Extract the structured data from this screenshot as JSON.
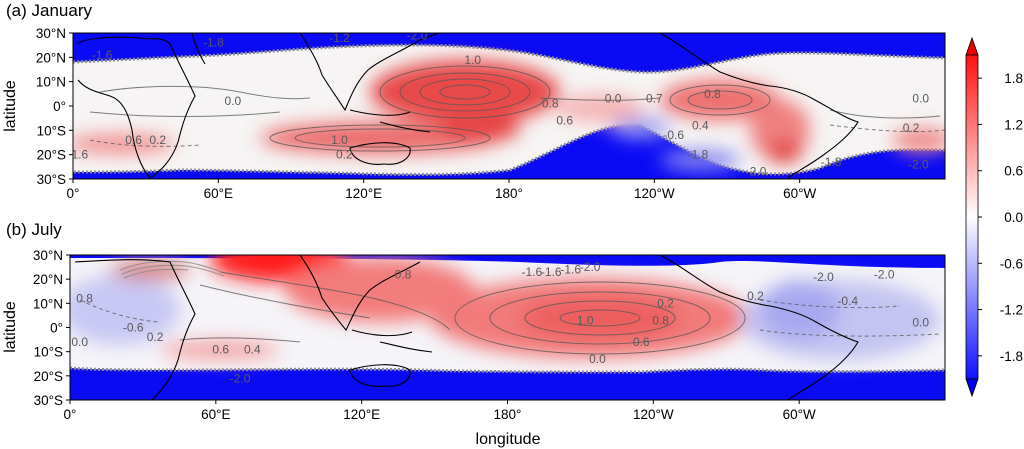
{
  "chart_data": [
    {
      "type": "heatmap",
      "title": "(a) January",
      "ylabel": "latitude",
      "xlabel": "",
      "x_ticks": [
        "0°",
        "60°E",
        "120°E",
        "180°",
        "120°W",
        "60°W"
      ],
      "x_tick_values": [
        0,
        60,
        120,
        180,
        240,
        300
      ],
      "xlim": [
        0,
        360
      ],
      "y_ticks": [
        "30°N",
        "20°N",
        "10°N",
        "0°",
        "10°S",
        "20°S",
        "30°S"
      ],
      "y_tick_values": [
        30,
        20,
        10,
        0,
        -10,
        -20,
        -30
      ],
      "ylim": [
        -30,
        30
      ],
      "contour_labels": [
        {
          "text": "-1.6",
          "lon": 12,
          "lat": 21
        },
        {
          "text": "-1.8",
          "lon": 58,
          "lat": 26
        },
        {
          "text": "-1.2",
          "lon": 110,
          "lat": 28
        },
        {
          "text": "-2.0",
          "lon": 142,
          "lat": 29
        },
        {
          "text": "1.0",
          "lon": 165,
          "lat": 19
        },
        {
          "text": "0.0",
          "lon": 66,
          "lat": 2
        },
        {
          "text": "0.8",
          "lon": 197,
          "lat": 1
        },
        {
          "text": "0.0",
          "lon": 223,
          "lat": 3
        },
        {
          "text": "0.7",
          "lon": 240,
          "lat": 3
        },
        {
          "text": "0.8",
          "lon": 264,
          "lat": 5
        },
        {
          "text": "0.6",
          "lon": 203,
          "lat": -6
        },
        {
          "text": "0.4",
          "lon": 259,
          "lat": -8
        },
        {
          "text": "-0.6",
          "lon": 248,
          "lat": -12
        },
        {
          "text": "1.0",
          "lon": 110,
          "lat": -14
        },
        {
          "text": "0.6",
          "lon": 25,
          "lat": -14
        },
        {
          "text": "0.2",
          "lon": 35,
          "lat": -14
        },
        {
          "text": "0.2",
          "lon": 112,
          "lat": -20
        },
        {
          "text": "-1.6",
          "lon": 2,
          "lat": -20
        },
        {
          "text": "-1.8",
          "lon": 258,
          "lat": -20
        },
        {
          "text": "0.0",
          "lon": 350,
          "lat": 3
        },
        {
          "text": "0.2",
          "lon": 346,
          "lat": -9
        },
        {
          "text": "-1.8",
          "lon": 313,
          "lat": -23
        },
        {
          "text": "-2.0",
          "lon": 349,
          "lat": -24
        },
        {
          "text": "-2.0",
          "lon": 282,
          "lat": -27
        }
      ]
    },
    {
      "type": "heatmap",
      "title": "(b) July",
      "ylabel": "latitude",
      "xlabel": "longitude",
      "x_ticks": [
        "0°",
        "60°E",
        "120°E",
        "180°",
        "120°W",
        "60°W"
      ],
      "x_tick_values": [
        0,
        60,
        120,
        180,
        240,
        300
      ],
      "xlim": [
        0,
        360
      ],
      "y_ticks": [
        "30°N",
        "20°N",
        "10°N",
        "0°",
        "10°S",
        "20°S",
        "30°S"
      ],
      "y_tick_values": [
        30,
        20,
        10,
        0,
        -10,
        -20,
        -30
      ],
      "ylim": [
        -30,
        30
      ],
      "contour_labels": [
        {
          "text": "0.8",
          "lon": 137,
          "lat": 22
        },
        {
          "text": "-1.6",
          "lon": 190,
          "lat": 23
        },
        {
          "text": "-1.6",
          "lon": 198,
          "lat": 23
        },
        {
          "text": "-1.6",
          "lon": 206,
          "lat": 24
        },
        {
          "text": "-2.0",
          "lon": 214,
          "lat": 25
        },
        {
          "text": "-2.0",
          "lon": 310,
          "lat": 21
        },
        {
          "text": "-2.0",
          "lon": 335,
          "lat": 22
        },
        {
          "text": "0.8",
          "lon": 6,
          "lat": 12
        },
        {
          "text": "0.2",
          "lon": 282,
          "lat": 13
        },
        {
          "text": "-0.4",
          "lon": 320,
          "lat": 11
        },
        {
          "text": "0.2",
          "lon": 245,
          "lat": 10
        },
        {
          "text": "1.0",
          "lon": 212,
          "lat": 3
        },
        {
          "text": "0.8",
          "lon": 243,
          "lat": 3
        },
        {
          "text": "0.0",
          "lon": 350,
          "lat": 2
        },
        {
          "text": "-0.6",
          "lon": 26,
          "lat": 0
        },
        {
          "text": "0.2",
          "lon": 35,
          "lat": -4
        },
        {
          "text": "0.0",
          "lon": 4,
          "lat": -6
        },
        {
          "text": "0.6",
          "lon": 235,
          "lat": -6
        },
        {
          "text": "0.6",
          "lon": 62,
          "lat": -9
        },
        {
          "text": "0.4",
          "lon": 75,
          "lat": -9
        },
        {
          "text": "0.0",
          "lon": 217,
          "lat": -13
        },
        {
          "text": "-2.0",
          "lon": 70,
          "lat": -21
        }
      ]
    }
  ],
  "colorbar": {
    "ticks": [
      "1.8",
      "1.2",
      "0.6",
      "0.0",
      "-0.6",
      "-1.2",
      "-1.8"
    ],
    "tick_values": [
      1.8,
      1.2,
      0.6,
      0.0,
      -0.6,
      -1.2,
      -1.8
    ],
    "range": [
      -2.1,
      2.1
    ],
    "colormap": "bwr",
    "extend": "both",
    "colors": {
      "low": "#0000ff",
      "mid": "#ffffff",
      "high": "#ff0000"
    }
  }
}
